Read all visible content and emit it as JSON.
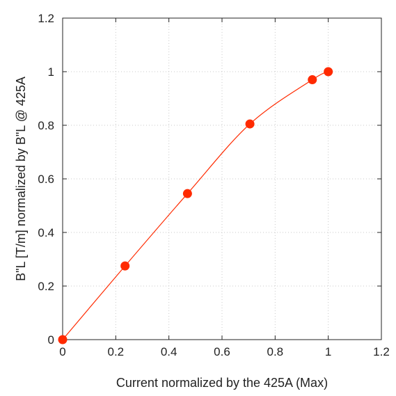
{
  "chart_data": {
    "type": "line",
    "title": "",
    "xlabel": "Current normalized by the 425A (Max)",
    "ylabel": "B\"L [T/m] normalized by B\"L @ 425A",
    "xlim": [
      0,
      1.2
    ],
    "ylim": [
      0,
      1.2
    ],
    "xticks": [
      "0",
      "0.2",
      "0.4",
      "0.6",
      "0.8",
      "1",
      "1.2"
    ],
    "yticks": [
      "0",
      "0.2",
      "0.4",
      "0.6",
      "0.8",
      "1",
      "1.2"
    ],
    "grid": true,
    "legend": "none",
    "color": "#ff2a00",
    "series": [
      {
        "x": [
          0,
          0.235,
          0.47,
          0.705,
          0.94,
          1.0
        ],
        "y": [
          0,
          0.275,
          0.545,
          0.805,
          0.97,
          1.0
        ]
      }
    ]
  }
}
